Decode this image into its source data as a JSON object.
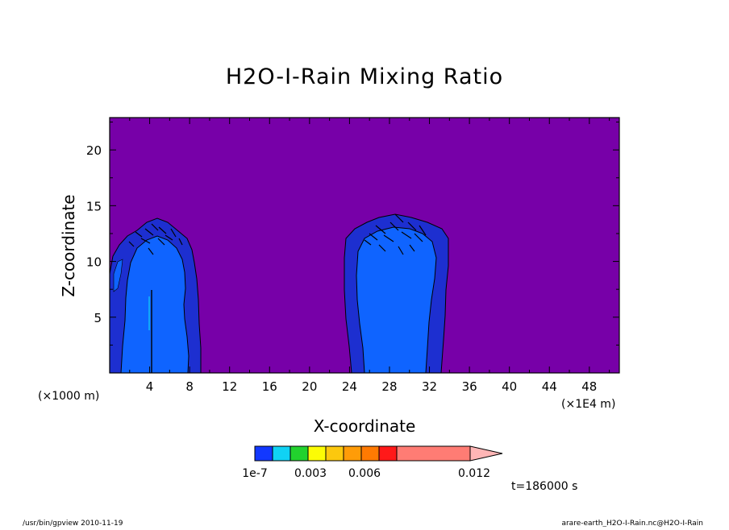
{
  "chart_data": {
    "type": "heatmap",
    "title": "H2O-I-Rain Mixing Ratio",
    "xlabel": "X-coordinate",
    "ylabel": "Z-coordinate",
    "x_unit": "(×1E4 m)",
    "y_unit": "(×1000 m)",
    "xlim": [
      0,
      51
    ],
    "ylim": [
      0,
      22.9
    ],
    "x_ticks": [
      4,
      8,
      12,
      16,
      20,
      24,
      28,
      32,
      36,
      40,
      44,
      48
    ],
    "y_ticks": [
      5,
      10,
      15,
      20
    ],
    "grid": false,
    "background_color": "#7700a8",
    "contour_levels": [
      {
        "name": "1e-7",
        "color": "#1d2fd0"
      },
      {
        "name": "band2",
        "color": "#0f64ff"
      }
    ],
    "regions": [
      {
        "name": "cell-1",
        "x_range": [
          0,
          9.2
        ],
        "top": 13.8
      },
      {
        "name": "cell-2",
        "x_range": [
          23.5,
          34
        ],
        "top": 14.2
      }
    ],
    "colorbar": {
      "colors": [
        "#1238ff",
        "#10d2f4",
        "#22d22e",
        "#fcfc05",
        "#fcc80e",
        "#ff9c08",
        "#ff7a02",
        "#ff1919",
        "#ff7c74"
      ],
      "tick_labels": [
        "1e-7",
        "0.003",
        "0.006",
        "0.012"
      ],
      "extend": "max"
    },
    "time_label": "t=186000 s"
  },
  "footer": {
    "left": "/usr/bin/gpview   2010-11-19",
    "right": "arare-earth_H2O-I-Rain.nc@H2O-I-Rain"
  }
}
